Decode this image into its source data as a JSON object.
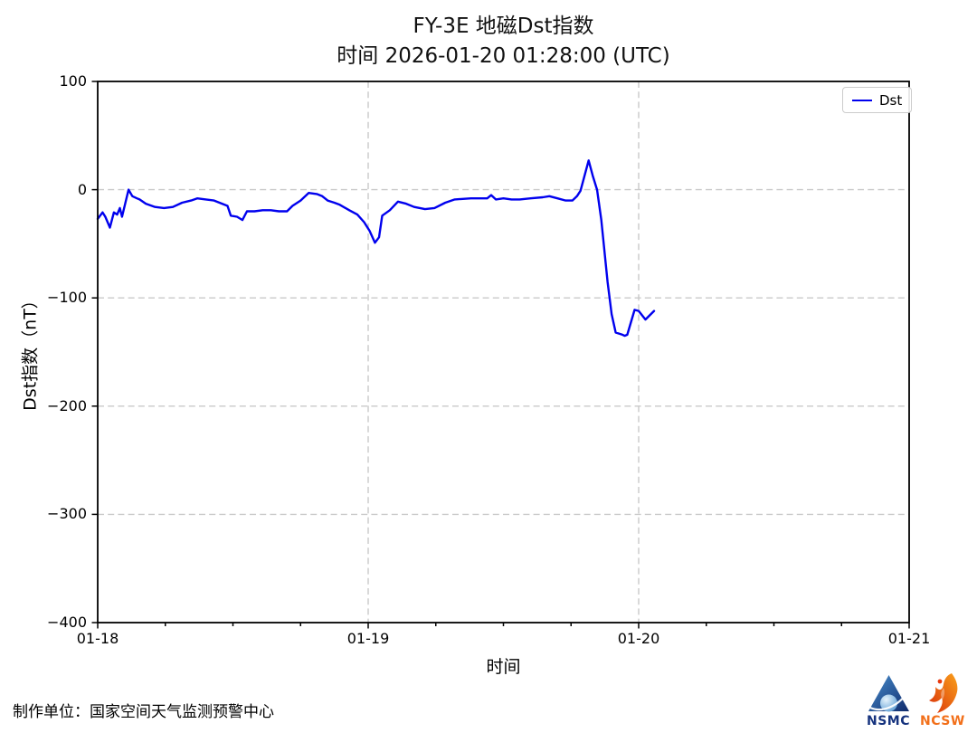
{
  "chart_data": {
    "type": "line",
    "title": "FY-3E 地磁Dst指数",
    "subtitle": "时间 2026-01-20 01:28:00 (UTC)",
    "xlabel": "时间",
    "ylabel": "Dst指数（nT）",
    "legend_position": "upper right",
    "grid_on": true,
    "ylim": [
      -400,
      100
    ],
    "xlim_days": [
      0,
      3
    ],
    "yticks": [
      {
        "value": 100,
        "label": "100"
      },
      {
        "value": 0,
        "label": "0"
      },
      {
        "value": -100,
        "label": "−100"
      },
      {
        "value": -200,
        "label": "−200"
      },
      {
        "value": -300,
        "label": "−300"
      },
      {
        "value": -400,
        "label": "−400"
      }
    ],
    "xticks": [
      {
        "value": 0,
        "label": "01-18"
      },
      {
        "value": 1,
        "label": "01-19"
      },
      {
        "value": 2,
        "label": "01-20"
      },
      {
        "value": 3,
        "label": "01-21"
      }
    ],
    "minor_xtick_interval_days": 0.25,
    "grid": {
      "h_values": [
        0,
        -100,
        -200,
        -300
      ],
      "v_values": [
        1,
        2
      ]
    },
    "legend": [
      {
        "label": "Dst",
        "color": "#0000ee"
      }
    ],
    "series": [
      {
        "name": "Dst",
        "color": "#0000ee",
        "units": "nT",
        "x_units": "days since 2026-01-18 00:00 UTC",
        "points": [
          [
            0.0,
            -27
          ],
          [
            0.018,
            -21
          ],
          [
            0.028,
            -25
          ],
          [
            0.045,
            -35
          ],
          [
            0.06,
            -21
          ],
          [
            0.072,
            -23
          ],
          [
            0.082,
            -17
          ],
          [
            0.09,
            -25
          ],
          [
            0.114,
            0
          ],
          [
            0.128,
            -6
          ],
          [
            0.145,
            -8
          ],
          [
            0.155,
            -9
          ],
          [
            0.178,
            -13
          ],
          [
            0.212,
            -16
          ],
          [
            0.245,
            -17
          ],
          [
            0.278,
            -16
          ],
          [
            0.312,
            -12
          ],
          [
            0.345,
            -10
          ],
          [
            0.368,
            -8
          ],
          [
            0.4,
            -9
          ],
          [
            0.43,
            -10
          ],
          [
            0.46,
            -13
          ],
          [
            0.48,
            -15
          ],
          [
            0.492,
            -24
          ],
          [
            0.515,
            -25
          ],
          [
            0.535,
            -28
          ],
          [
            0.552,
            -20
          ],
          [
            0.58,
            -20
          ],
          [
            0.61,
            -19
          ],
          [
            0.64,
            -19
          ],
          [
            0.67,
            -20
          ],
          [
            0.7,
            -20
          ],
          [
            0.72,
            -15
          ],
          [
            0.75,
            -10
          ],
          [
            0.78,
            -3
          ],
          [
            0.81,
            -4
          ],
          [
            0.83,
            -6
          ],
          [
            0.85,
            -10
          ],
          [
            0.875,
            -12
          ],
          [
            0.895,
            -14
          ],
          [
            0.93,
            -19
          ],
          [
            0.96,
            -23
          ],
          [
            0.985,
            -30
          ],
          [
            1.005,
            -38
          ],
          [
            1.025,
            -49
          ],
          [
            1.04,
            -44
          ],
          [
            1.052,
            -24
          ],
          [
            1.08,
            -19
          ],
          [
            1.11,
            -11
          ],
          [
            1.14,
            -13
          ],
          [
            1.17,
            -16
          ],
          [
            1.21,
            -18
          ],
          [
            1.245,
            -17
          ],
          [
            1.285,
            -12
          ],
          [
            1.32,
            -9
          ],
          [
            1.38,
            -8
          ],
          [
            1.44,
            -8
          ],
          [
            1.455,
            -5
          ],
          [
            1.472,
            -9
          ],
          [
            1.5,
            -8
          ],
          [
            1.53,
            -9
          ],
          [
            1.56,
            -9
          ],
          [
            1.6,
            -8
          ],
          [
            1.645,
            -7
          ],
          [
            1.67,
            -6
          ],
          [
            1.7,
            -8
          ],
          [
            1.73,
            -10
          ],
          [
            1.755,
            -10
          ],
          [
            1.772,
            -6
          ],
          [
            1.785,
            -1
          ],
          [
            1.815,
            27
          ],
          [
            1.83,
            13
          ],
          [
            1.846,
            0
          ],
          [
            1.862,
            -28
          ],
          [
            1.885,
            -85
          ],
          [
            1.9,
            -115
          ],
          [
            1.915,
            -132
          ],
          [
            1.94,
            -134
          ],
          [
            1.948,
            -135
          ],
          [
            1.958,
            -134
          ],
          [
            1.985,
            -111
          ],
          [
            2.0,
            -112
          ],
          [
            2.025,
            -120
          ],
          [
            2.057,
            -112
          ]
        ]
      }
    ]
  },
  "footer": {
    "credit": "制作单位：国家空间天气监测预警中心",
    "logos": [
      {
        "label": "NSMC",
        "color": "#16337e"
      },
      {
        "label": "NCSW",
        "color": "#f2701b"
      }
    ]
  },
  "colors": {
    "line": "#0000ee",
    "gridline": "#c9c9c9",
    "axis": "#000000",
    "legend_border": "#cccccc",
    "nsmc_blue": "#16337e",
    "ncsw_orange": "#f2701b"
  }
}
